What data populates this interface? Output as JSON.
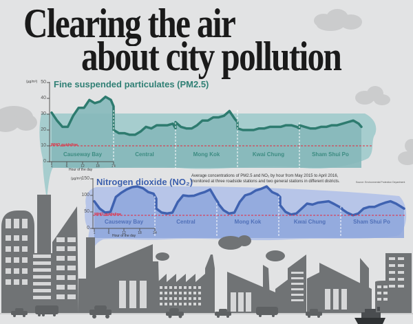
{
  "headline": {
    "line1": "Clearing the air",
    "line2": "about city pollution"
  },
  "caption": "Average concentrations of PM2.5 and NO₂ by hour from May 2015 to April 2016, monitored at three roadside stations and two general stations in different districts.",
  "source": "Source: Environmental Protection Department",
  "colors": {
    "background": "#e2e3e4",
    "pm_line": "#2e7b6f",
    "pm_fill": "#8fc0c2",
    "no2_line": "#3f62b0",
    "no2_fill": "#a8b9e4",
    "who_line": "#e8263a",
    "buildings": "#707375"
  },
  "pm": {
    "title": "Fine suspended particulates (PM2.5)",
    "unit": "(µg/m³)",
    "yticks": [
      "0",
      "10",
      "20",
      "30",
      "40",
      "50"
    ],
    "xticks": [
      "1",
      "6",
      "12",
      "18",
      "24"
    ],
    "xlabel": "Hour of the day",
    "who_label": "WHO guideline",
    "districts": [
      "Causeway Bay",
      "Central",
      "Mong Kok",
      "Kwai Chung",
      "Sham Shui Po"
    ]
  },
  "no2": {
    "title": "Nitrogen dioxide (NO₂)",
    "unit": "(µg/m³)",
    "yticks": [
      "0",
      "50",
      "100",
      "150"
    ],
    "xticks": [
      "1",
      "6",
      "12",
      "18",
      "24"
    ],
    "xlabel": "Hour of the day",
    "who_label": "WHO guideline",
    "districts": [
      "Causeway Bay",
      "Central",
      "Mong Kok",
      "Kwai Chung",
      "Sham Shui Po"
    ]
  },
  "chart_data": [
    {
      "type": "line",
      "title": "Fine suspended particulates (PM2.5)",
      "xlabel": "Hour of the day",
      "ylabel": "µg/m³",
      "ylim": [
        0,
        50
      ],
      "yticks": [
        0,
        10,
        20,
        30,
        40,
        50
      ],
      "xticks": [
        1,
        6,
        12,
        18,
        24
      ],
      "reference_line": {
        "label": "WHO guideline",
        "value": 10
      },
      "x": [
        1,
        3,
        5,
        7,
        9,
        11,
        13,
        15,
        17,
        19,
        21,
        23,
        24
      ],
      "series": [
        {
          "name": "Causeway Bay",
          "values": [
            31,
            26,
            22,
            22,
            29,
            34,
            34,
            39,
            37,
            38,
            41,
            39,
            35
          ]
        },
        {
          "name": "Central",
          "values": [
            20,
            18,
            18,
            17,
            17,
            19,
            22,
            21,
            23,
            23,
            23,
            24,
            21
          ]
        },
        {
          "name": "Mong Kok",
          "values": [
            25,
            22,
            21,
            21,
            23,
            26,
            26,
            28,
            28,
            29,
            32,
            27,
            25
          ]
        },
        {
          "name": "Kwai Chung",
          "values": [
            21,
            20,
            20,
            20,
            21,
            21,
            22,
            22,
            22,
            23,
            23,
            22,
            21
          ]
        },
        {
          "name": "Sham Shui Po",
          "values": [
            23,
            22,
            21,
            21,
            22,
            22,
            23,
            23,
            24,
            25,
            26,
            24,
            22
          ]
        }
      ]
    },
    {
      "type": "line",
      "title": "Nitrogen dioxide (NO₂)",
      "xlabel": "Hour of the day",
      "ylabel": "µg/m³",
      "ylim": [
        0,
        150
      ],
      "yticks": [
        0,
        50,
        100,
        150
      ],
      "xticks": [
        1,
        6,
        12,
        18,
        24
      ],
      "reference_line": {
        "label": "WHO guideline",
        "value": 40
      },
      "x": [
        1,
        3,
        5,
        7,
        9,
        11,
        13,
        15,
        17,
        19,
        21,
        23,
        24
      ],
      "series": [
        {
          "name": "Causeway Bay",
          "values": [
            82,
            60,
            48,
            50,
            95,
            108,
            118,
            125,
            127,
            122,
            110,
            105,
            90
          ]
        },
        {
          "name": "Central",
          "values": [
            60,
            48,
            45,
            48,
            80,
            100,
            98,
            99,
            105,
            110,
            118,
            90,
            78
          ]
        },
        {
          "name": "Mong Kok",
          "values": [
            75,
            55,
            45,
            48,
            80,
            100,
            105,
            115,
            120,
            127,
            110,
            103,
            95
          ]
        },
        {
          "name": "Kwai Chung",
          "values": [
            70,
            50,
            42,
            45,
            60,
            75,
            72,
            78,
            80,
            82,
            74,
            65,
            60
          ]
        },
        {
          "name": "Sham Shui Po",
          "values": [
            58,
            47,
            40,
            45,
            60,
            65,
            65,
            72,
            78,
            82,
            75,
            65,
            60
          ]
        }
      ]
    }
  ]
}
